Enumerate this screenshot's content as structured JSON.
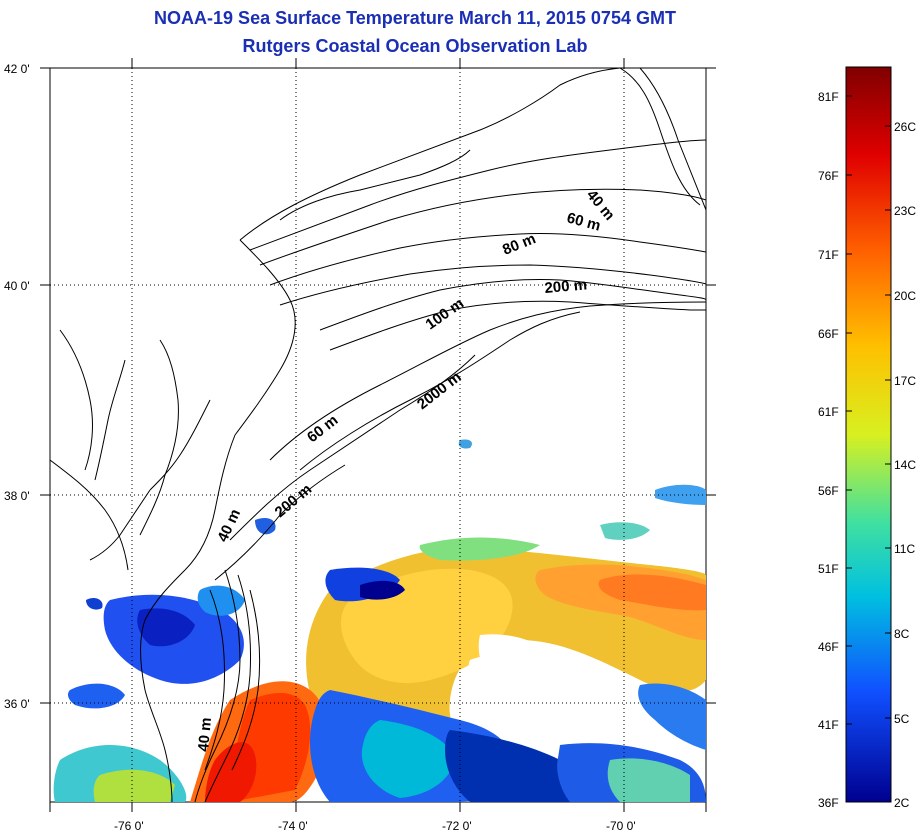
{
  "title_line1": "NOAA-19 Sea Surface Temperature March 11, 2015 0754 GMT",
  "title_line2": "Rutgers Coastal Ocean Observation Lab",
  "lat_labels": [
    "42 0'",
    "40 0'",
    "38 0'",
    "36 0'"
  ],
  "lon_labels": [
    "-76 0'",
    "-74 0'",
    "-72 0'",
    "-70 0'"
  ],
  "contour_labels": [
    "40 m",
    "60 m",
    "80 m",
    "200 m",
    "100 m",
    "2000 m",
    "60 m",
    "200 m",
    "40 m",
    "40 m"
  ],
  "colorbar": {
    "fahrenheit": [
      "81F",
      "76F",
      "71F",
      "66F",
      "61F",
      "56F",
      "51F",
      "46F",
      "41F",
      "36F"
    ],
    "celsius": [
      "26C",
      "23C",
      "20C",
      "17C",
      "14C",
      "11C",
      "8C",
      "5C",
      "2C"
    ]
  },
  "colors": {
    "title": "#1a2fb4",
    "cold": "#00008f",
    "warm": "#800000"
  }
}
